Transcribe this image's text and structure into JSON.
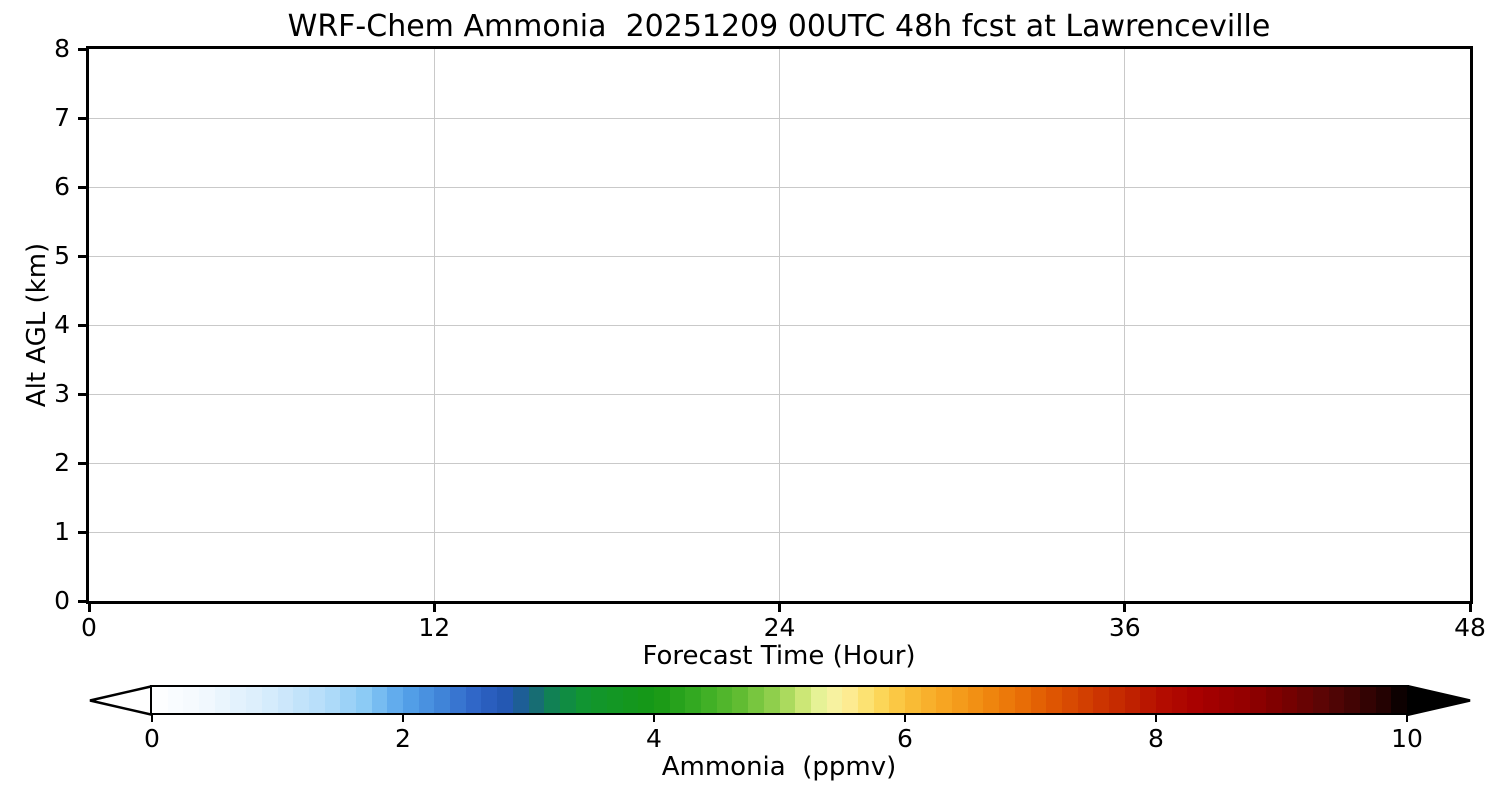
{
  "chart_data": {
    "type": "heatmap",
    "title": "WRF-Chem Ammonia  20251209 00UTC 48h fcst at Lawrenceville",
    "xlabel": "Forecast Time (Hour)",
    "ylabel": "Alt AGL (km)",
    "xlim": [
      0,
      48
    ],
    "ylim": [
      0,
      8
    ],
    "xticks": [
      0,
      12,
      24,
      36,
      48
    ],
    "yticks": [
      0,
      1,
      2,
      3,
      4,
      5,
      6,
      7,
      8
    ],
    "grid": true,
    "grid_color": "#c9c9c9",
    "frame_color": "#000000",
    "background_color": "#ffffff",
    "data": [],
    "colorbar": {
      "label": "Ammonia  (ppmv)",
      "ticks": [
        0,
        2,
        4,
        6,
        8,
        10
      ],
      "range": [
        0,
        10
      ],
      "extend": "both",
      "extend_min_color": "#ffffff",
      "extend_max_color": "#000000",
      "cells": 80,
      "stops": [
        {
          "v": 0.0,
          "c": "#ffffff"
        },
        {
          "v": 0.4,
          "c": "#f3f9fe"
        },
        {
          "v": 0.9,
          "c": "#d8edfc"
        },
        {
          "v": 1.4,
          "c": "#b2dcf9"
        },
        {
          "v": 1.7,
          "c": "#8acaf5"
        },
        {
          "v": 2.0,
          "c": "#57a4eb"
        },
        {
          "v": 2.3,
          "c": "#4185d9"
        },
        {
          "v": 2.6,
          "c": "#2e63c5"
        },
        {
          "v": 2.85,
          "c": "#2256b0"
        },
        {
          "v": 3.0,
          "c": "#1a6383"
        },
        {
          "v": 3.2,
          "c": "#108351"
        },
        {
          "v": 3.45,
          "c": "#119630"
        },
        {
          "v": 4.0,
          "c": "#169815"
        },
        {
          "v": 4.35,
          "c": "#36ab22"
        },
        {
          "v": 4.7,
          "c": "#63bd33"
        },
        {
          "v": 5.0,
          "c": "#9ad452"
        },
        {
          "v": 5.2,
          "c": "#cfe878"
        },
        {
          "v": 5.35,
          "c": "#eef5a0"
        },
        {
          "v": 5.5,
          "c": "#fdf0a0"
        },
        {
          "v": 5.75,
          "c": "#fcdd62"
        },
        {
          "v": 6.0,
          "c": "#fac13a"
        },
        {
          "v": 6.3,
          "c": "#f7a623"
        },
        {
          "v": 6.6,
          "c": "#f18d12"
        },
        {
          "v": 6.9,
          "c": "#ea7106"
        },
        {
          "v": 7.2,
          "c": "#dd5402"
        },
        {
          "v": 7.5,
          "c": "#cf3901"
        },
        {
          "v": 7.8,
          "c": "#c02200"
        },
        {
          "v": 8.05,
          "c": "#b40c00"
        },
        {
          "v": 8.35,
          "c": "#a70000"
        },
        {
          "v": 8.7,
          "c": "#940000"
        },
        {
          "v": 9.0,
          "c": "#7b0000"
        },
        {
          "v": 9.3,
          "c": "#5d0505"
        },
        {
          "v": 9.6,
          "c": "#3e0404"
        },
        {
          "v": 9.85,
          "c": "#1f0202"
        },
        {
          "v": 10.0,
          "c": "#000000"
        }
      ]
    }
  }
}
